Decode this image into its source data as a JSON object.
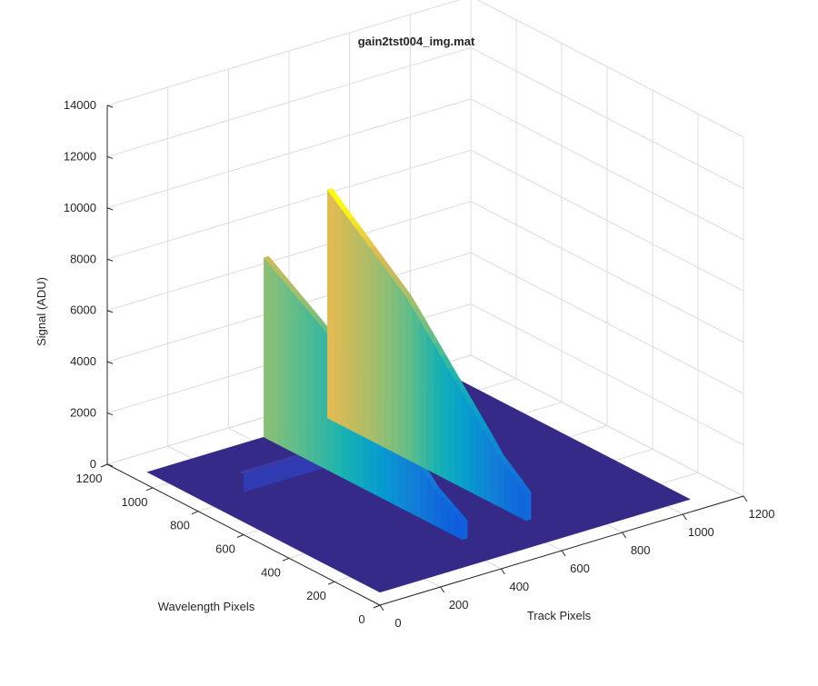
{
  "chart_data": {
    "type": "surface3d",
    "title": "gain2tst004_img.mat",
    "xlabel": "Track Pixels",
    "ylabel": "Wavelength Pixels",
    "zlabel": "Signal (ADU)",
    "xlim": [
      0,
      1200
    ],
    "ylim": [
      0,
      1200
    ],
    "zlim": [
      0,
      14000
    ],
    "x_ticks": [
      0,
      200,
      400,
      600,
      800,
      1000,
      1200
    ],
    "y_ticks": [
      0,
      200,
      400,
      600,
      800,
      1000,
      1200
    ],
    "z_ticks": [
      0,
      2000,
      4000,
      6000,
      8000,
      10000,
      12000,
      14000
    ],
    "grid": true,
    "colormap": "parula",
    "baseline_color": "#352a87",
    "data_extent": {
      "x": [
        0,
        1024
      ],
      "y": [
        0,
        1024
      ]
    },
    "background_level": 500,
    "features": [
      {
        "name": "Track 1 peak",
        "track_pixel": 393,
        "track_width": 16,
        "wavelength_range": [
          150,
          1024
        ],
        "peak_signal": 7500,
        "mid_signal": 5400,
        "low_signal": 2000
      },
      {
        "name": "Track 2 peak",
        "track_pixel": 603,
        "track_width": 16,
        "wavelength_range": [
          150,
          1024
        ],
        "peak_signal": 9400,
        "mid_signal": 6800,
        "low_signal": 2600
      },
      {
        "name": "Spectral stripe",
        "wavelength_pixel": 770,
        "wavelength_width": 20,
        "track_range": [
          120,
          650
        ],
        "signal": 1200
      }
    ]
  }
}
